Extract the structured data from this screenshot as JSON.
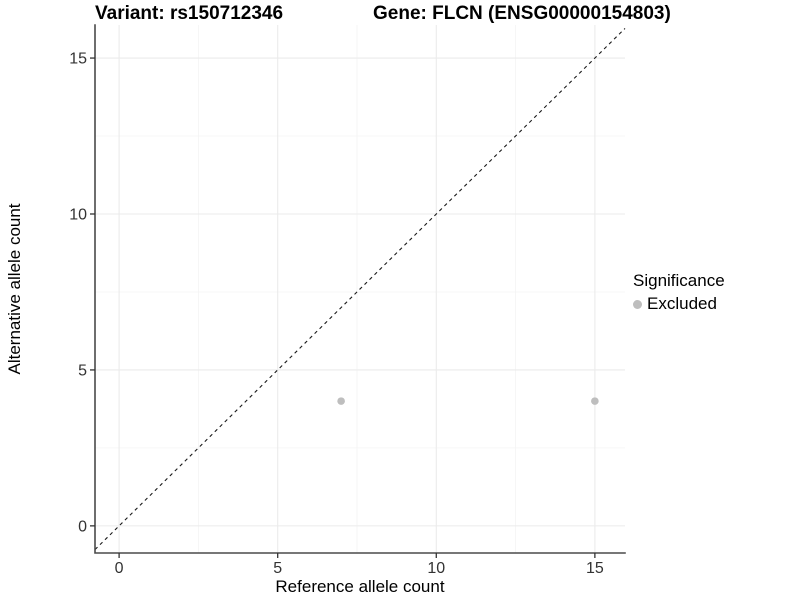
{
  "titles": {
    "left": "Variant: rs150712346",
    "right": "Gene: FLCN (ENSG00000154803)"
  },
  "legend": {
    "title": "Significance",
    "items": [
      {
        "label": "Excluded",
        "color": "#bebebe"
      }
    ]
  },
  "chart_data": {
    "type": "scatter",
    "title": "Variant: rs150712346   Gene: FLCN (ENSG00000154803)",
    "xlabel": "Reference allele count",
    "ylabel": "Alternative allele count",
    "xlim": [
      -0.76,
      15.95
    ],
    "ylim": [
      -0.87,
      16.06
    ],
    "x_ticks": [
      0,
      5,
      10,
      15
    ],
    "y_ticks": [
      0,
      5,
      10,
      15
    ],
    "x_minor_ticks": [
      2.5,
      7.5,
      12.5
    ],
    "y_minor_ticks": [
      2.5,
      7.5,
      12.5
    ],
    "grid": true,
    "legend_position": "right",
    "series": [
      {
        "name": "Excluded",
        "color": "#bebebe",
        "points": [
          {
            "x": 7,
            "y": 4
          },
          {
            "x": 15,
            "y": 4
          }
        ]
      }
    ],
    "reference_line": {
      "type": "identity y=x",
      "style": "dashed",
      "color": "#1a1a1a"
    },
    "colors": {
      "background": "#ffffff",
      "major_grid": "#ebebeb",
      "minor_grid": "#f4f4f4",
      "axis_line": "#4a4a4a",
      "tick_mark": "#333333",
      "tick_label": "#333333",
      "axis_label": "#000000",
      "point": "#bebebe"
    }
  }
}
